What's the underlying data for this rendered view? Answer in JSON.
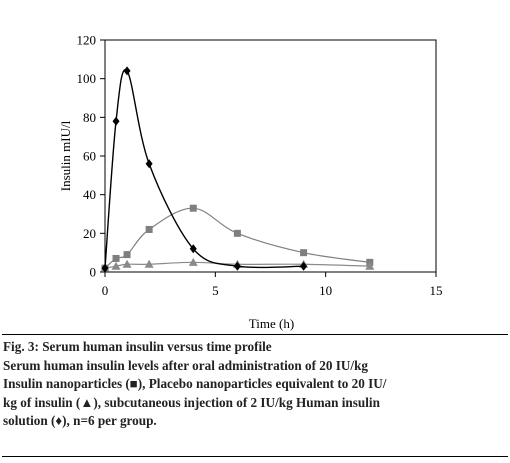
{
  "chart_data": {
    "type": "line",
    "title": "",
    "xlabel": "Time (h)",
    "ylabel": "Insulin mIU/l",
    "xlim": [
      0,
      15
    ],
    "ylim": [
      0,
      120
    ],
    "x_ticks": [
      0,
      5,
      10,
      15
    ],
    "y_ticks": [
      0,
      20,
      40,
      60,
      80,
      100,
      120
    ],
    "x_tick_labels": [
      "0",
      "5",
      "10",
      "15"
    ],
    "y_tick_labels": [
      "0",
      "20",
      "40",
      "60",
      "80",
      "100",
      "120"
    ],
    "grid": false,
    "legend": "none",
    "series": [
      {
        "marker": "square",
        "color": "#7f7f7f",
        "line_color": "#808080",
        "points": [
          [
            0,
            2
          ],
          [
            0.5,
            7
          ],
          [
            1,
            9
          ],
          [
            2,
            22
          ],
          [
            4,
            33
          ],
          [
            6,
            20
          ],
          [
            9,
            10
          ],
          [
            12,
            5
          ]
        ]
      },
      {
        "marker": "triangle",
        "color": "#8a8a8a",
        "line_color": "#8a8a8a",
        "points": [
          [
            0,
            2
          ],
          [
            0.5,
            3
          ],
          [
            1,
            4
          ],
          [
            2,
            4
          ],
          [
            4,
            5
          ],
          [
            6,
            4
          ],
          [
            9,
            4
          ],
          [
            12,
            3
          ]
        ]
      },
      {
        "marker": "diamond",
        "color": "#000000",
        "line_color": "#000000",
        "points": [
          [
            0,
            2
          ],
          [
            0.5,
            78
          ],
          [
            1,
            104
          ],
          [
            2,
            56
          ],
          [
            4,
            12
          ],
          [
            6,
            3
          ],
          [
            9,
            3
          ]
        ]
      }
    ]
  },
  "caption": {
    "figure_label": "Fig. 3: Serum human insulin versus time profile",
    "lines": [
      "Serum human insulin levels after oral administration of 20 IU/kg",
      "Insulin nanoparticles (■), Placebo nanoparticles equivalent to 20 IU/",
      "kg of insulin (▲), subcutaneous injection of 2 IU/kg Human insulin",
      "solution (♦), n=6 per group."
    ]
  }
}
